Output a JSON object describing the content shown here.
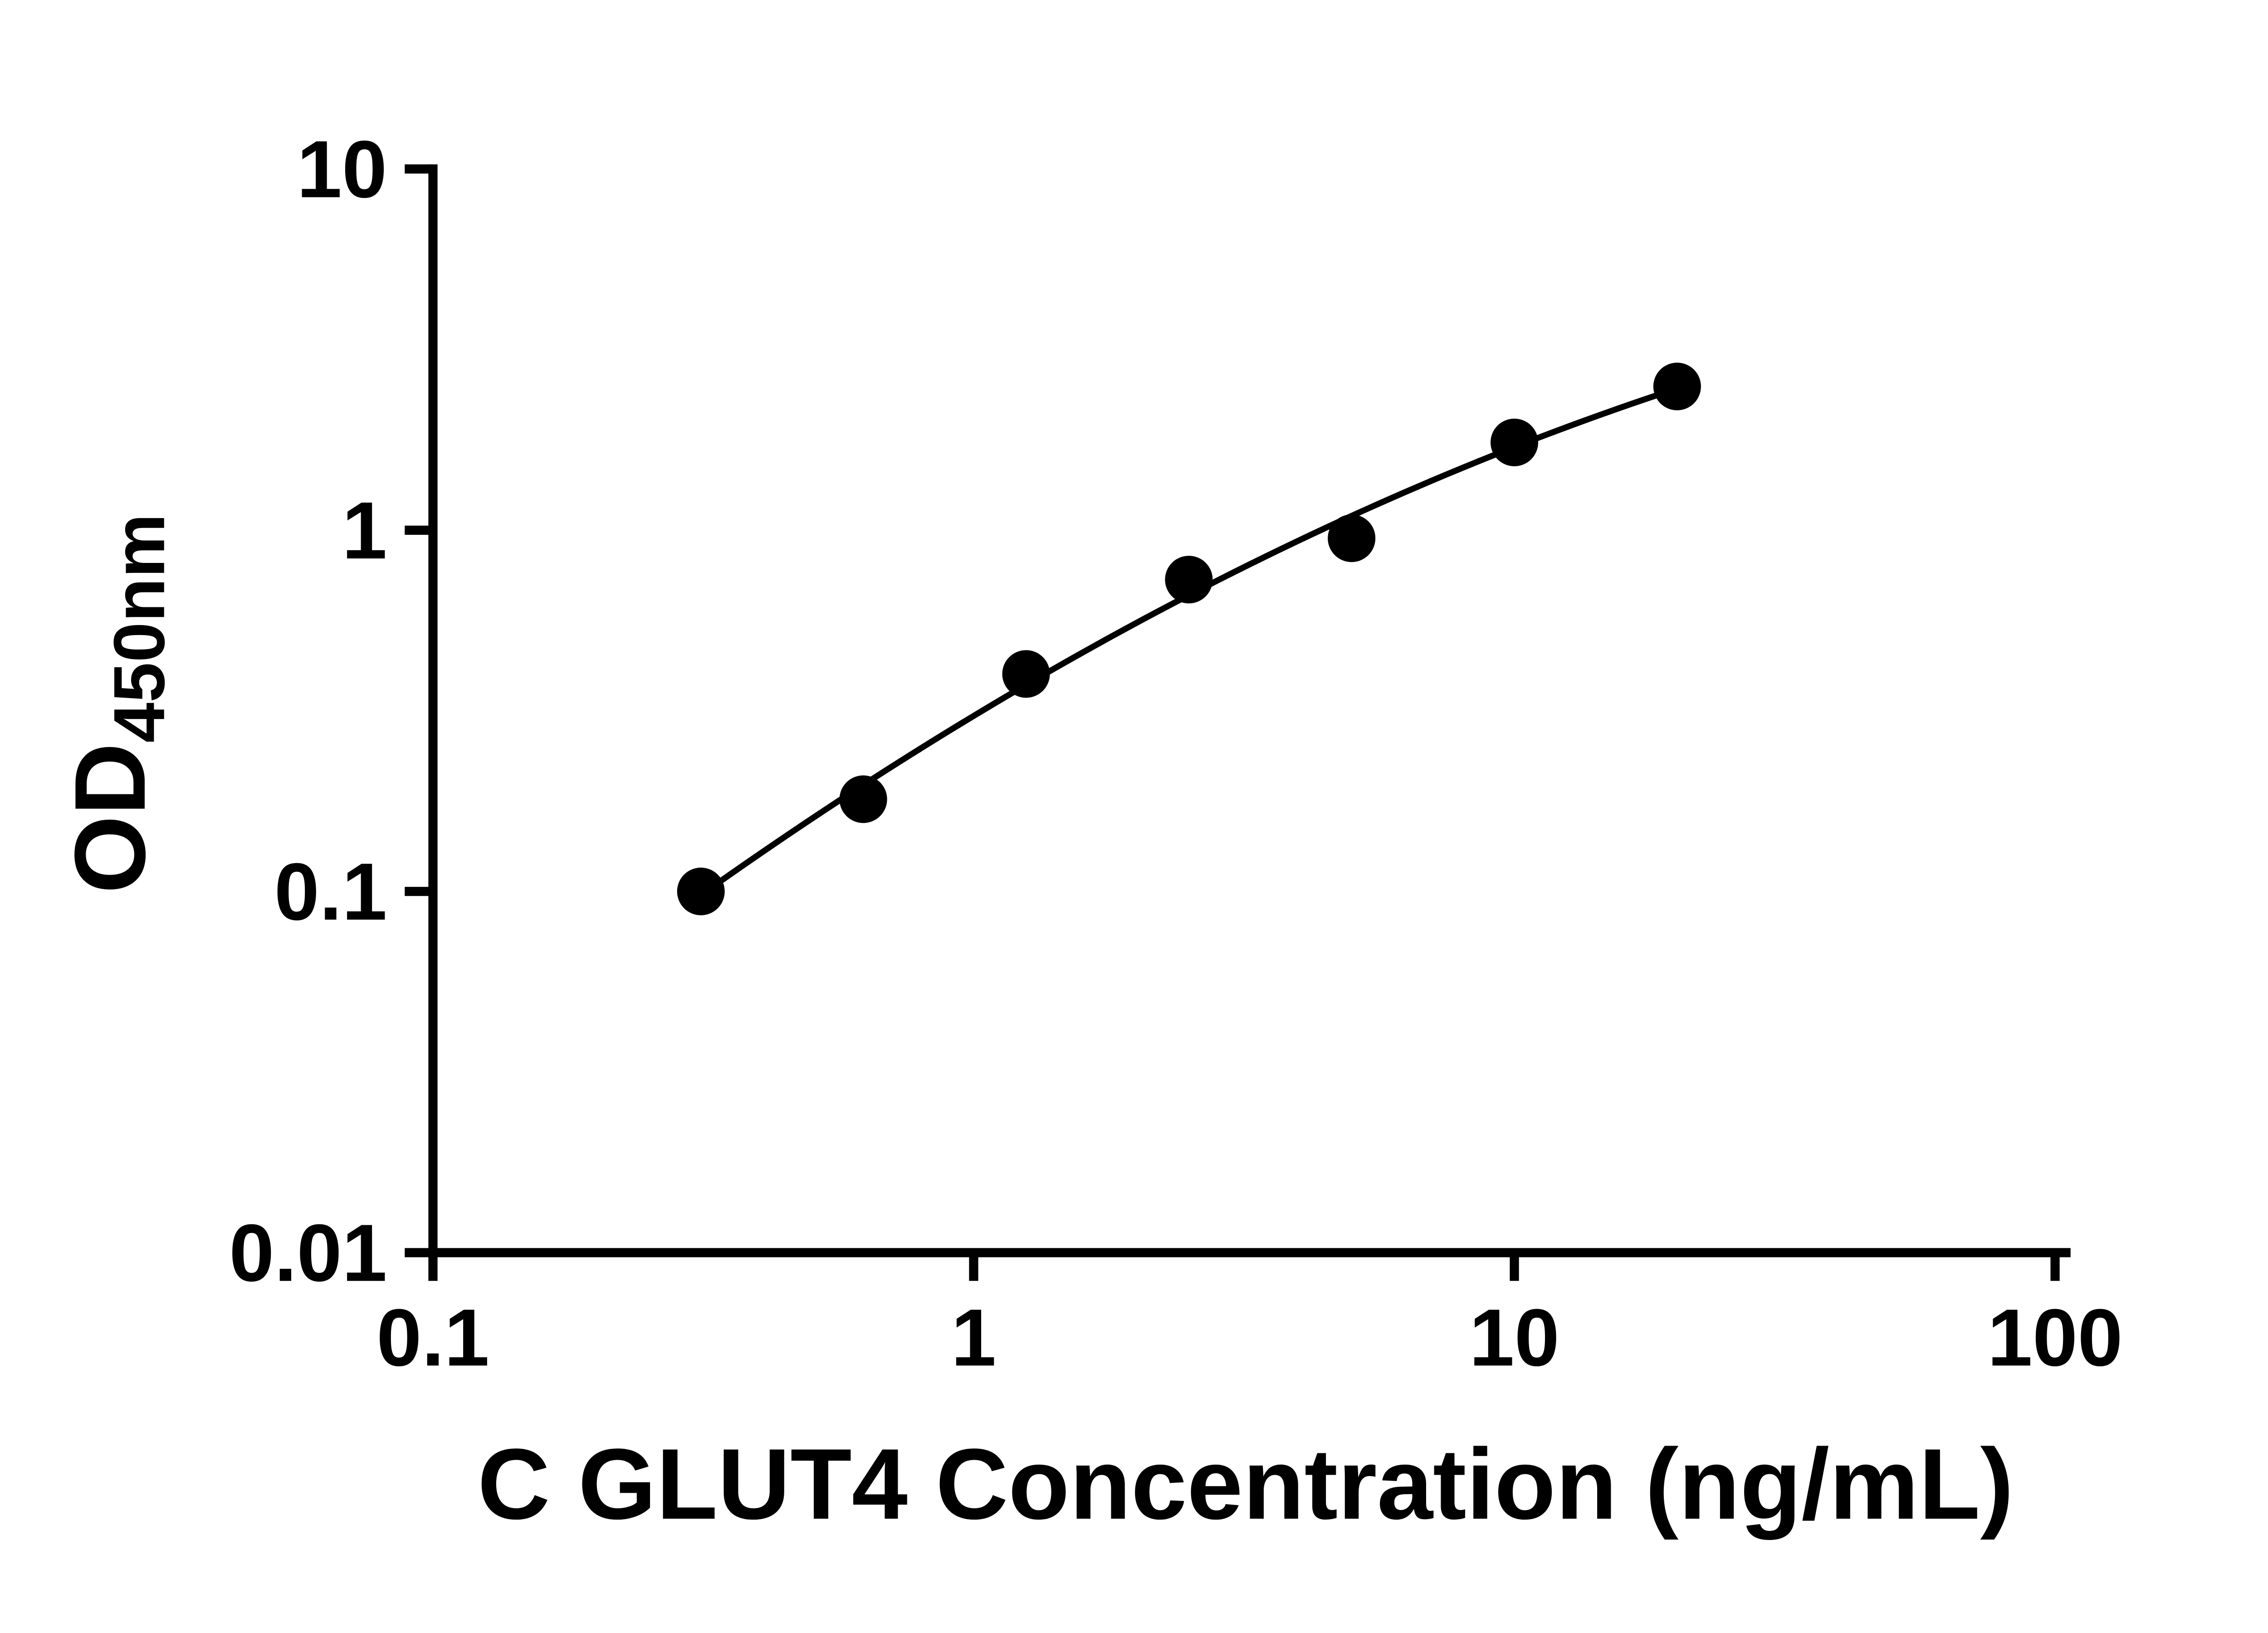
{
  "page": {
    "background_color": "#ffffff"
  },
  "chart_data": {
    "type": "scatter",
    "title": "",
    "xlabel": "C GLUT4 Concentration (ng/mL)",
    "ylabel": "OD",
    "ylabel_subscript": "450nm",
    "x_scale": "log",
    "y_scale": "log",
    "xlim": [
      0.1,
      100
    ],
    "ylim": [
      0.01,
      10
    ],
    "grid": false,
    "legend": false,
    "line_color": "#000000",
    "marker_color": "#000000",
    "x_ticks": [
      {
        "label": "0.1",
        "value": 0.1
      },
      {
        "label": "1",
        "value": 1
      },
      {
        "label": "10",
        "value": 10
      },
      {
        "label": "100",
        "value": 100
      }
    ],
    "y_ticks": [
      {
        "label": "10",
        "value": 10
      },
      {
        "label": "1",
        "value": 1
      },
      {
        "label": "0.1",
        "value": 0.1
      },
      {
        "label": "0.01",
        "value": 0.01
      }
    ],
    "series": [
      {
        "marker": "filled-circle",
        "color": "#000000",
        "fit": "smooth-curve",
        "points": [
          {
            "x": 0.313,
            "y": 0.1
          },
          {
            "x": 0.625,
            "y": 0.18
          },
          {
            "x": 1.25,
            "y": 0.4
          },
          {
            "x": 2.5,
            "y": 0.73
          },
          {
            "x": 5,
            "y": 0.95
          },
          {
            "x": 10,
            "y": 1.75
          },
          {
            "x": 20,
            "y": 2.5
          }
        ]
      }
    ]
  }
}
